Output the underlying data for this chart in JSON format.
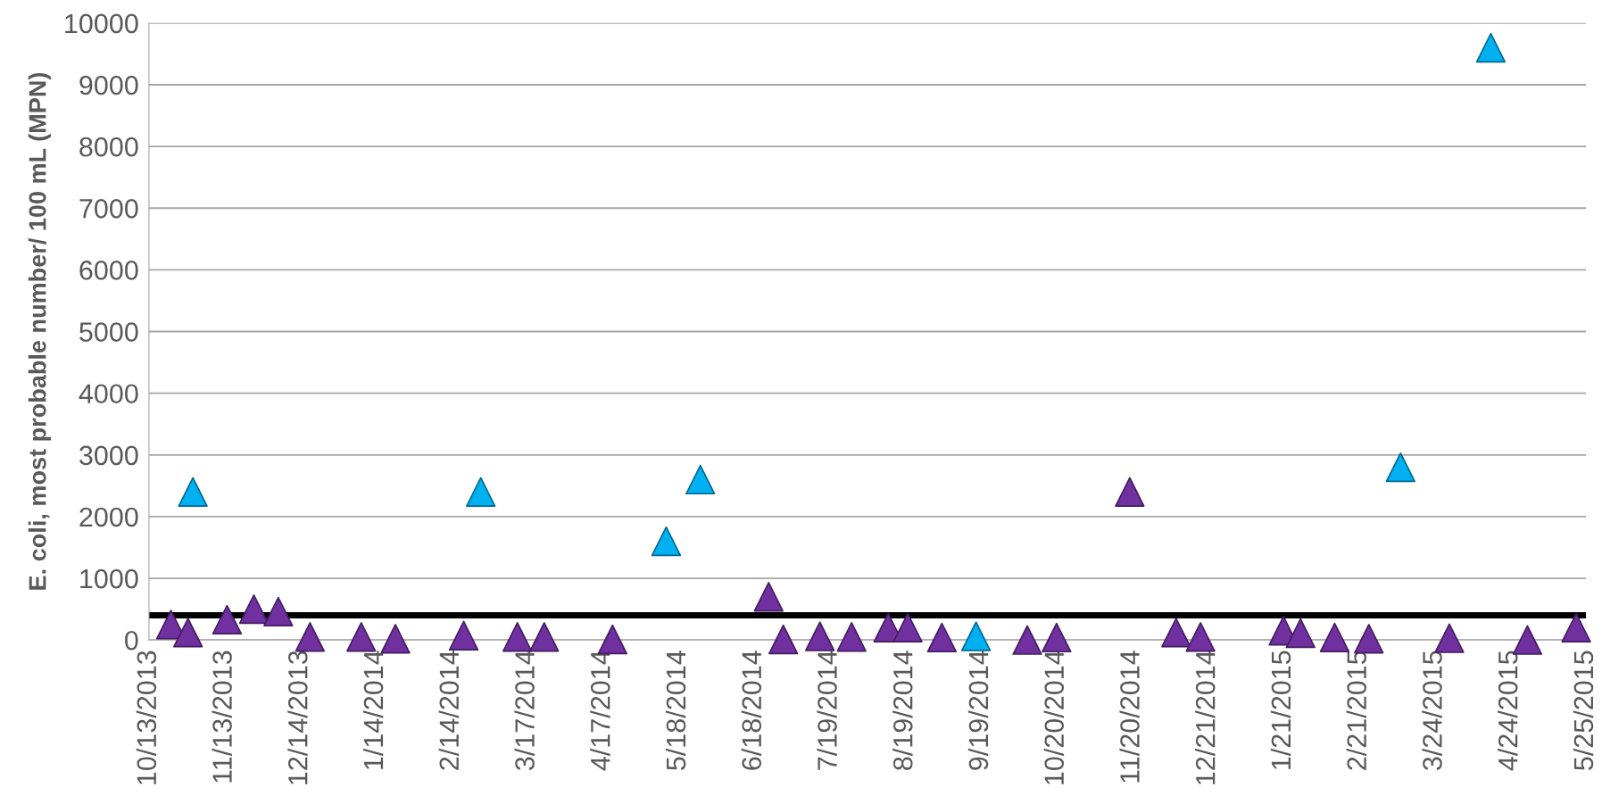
{
  "chart_data": {
    "type": "scatter",
    "ylabel": "E. coli, most probable number/ 100 mL (MPN)",
    "marker": "triangle",
    "grid": "y",
    "legend": false,
    "ylim": [
      0,
      10000
    ],
    "yticks": [
      0,
      1000,
      2000,
      3000,
      4000,
      5000,
      6000,
      7000,
      8000,
      9000,
      10000
    ],
    "xlim": [
      "2013-10-13",
      "2015-05-25"
    ],
    "xticks": [
      {
        "value": "2013-10-13",
        "label": "10/13/2013"
      },
      {
        "value": "2013-11-13",
        "label": "11/13/2013"
      },
      {
        "value": "2013-12-14",
        "label": "12/14/2013"
      },
      {
        "value": "2014-01-14",
        "label": "1/14/2014"
      },
      {
        "value": "2014-02-14",
        "label": "2/14/2014"
      },
      {
        "value": "2014-03-17",
        "label": "3/17/2014"
      },
      {
        "value": "2014-04-17",
        "label": "4/17/2014"
      },
      {
        "value": "2014-05-18",
        "label": "5/18/2014"
      },
      {
        "value": "2014-06-18",
        "label": "6/18/2014"
      },
      {
        "value": "2014-07-19",
        "label": "7/19/2014"
      },
      {
        "value": "2014-08-19",
        "label": "8/19/2014"
      },
      {
        "value": "2014-09-19",
        "label": "9/19/2014"
      },
      {
        "value": "2014-10-20",
        "label": "10/20/2014"
      },
      {
        "value": "2014-11-20",
        "label": "11/20/2014"
      },
      {
        "value": "2014-12-21",
        "label": "12/21/2014"
      },
      {
        "value": "2015-01-21",
        "label": "1/21/2015"
      },
      {
        "value": "2015-02-21",
        "label": "2/21/2015"
      },
      {
        "value": "2015-03-24",
        "label": "3/24/2015"
      },
      {
        "value": "2015-04-24",
        "label": "4/24/2015"
      },
      {
        "value": "2015-05-25",
        "label": "5/25/2015"
      }
    ],
    "ref_lines": [
      {
        "axis": "y",
        "value": 400,
        "label": null,
        "color": "#000000",
        "line_style": "solid"
      }
    ],
    "series": [
      {
        "color": "#00b0f0",
        "x": [
          "2013-10-31",
          "2014-02-26",
          "2014-05-13",
          "2014-05-27",
          "2014-09-17",
          "2015-03-10",
          "2015-04-16"
        ],
        "values": [
          2400,
          2400,
          1600,
          2600,
          60,
          2800,
          9600
        ]
      },
      {
        "color": "#7030a0",
        "x": [
          "2013-10-22",
          "2013-10-29",
          "2013-11-14",
          "2013-11-25",
          "2013-12-05",
          "2013-12-18",
          "2014-01-08",
          "2014-01-22",
          "2014-02-19",
          "2014-03-13",
          "2014-03-24",
          "2014-04-21",
          "2014-06-24",
          "2014-06-30",
          "2014-07-15",
          "2014-07-28",
          "2014-08-12",
          "2014-08-20",
          "2014-09-03",
          "2014-10-08",
          "2014-10-20",
          "2014-11-19",
          "2014-12-08",
          "2014-12-18",
          "2015-01-21",
          "2015-01-28",
          "2015-02-11",
          "2015-02-25",
          "2015-03-30",
          "2015-05-01",
          "2015-05-21"
        ],
        "values": [
          250,
          120,
          330,
          500,
          460,
          50,
          50,
          20,
          70,
          50,
          50,
          10,
          700,
          10,
          60,
          50,
          200,
          200,
          40,
          0,
          40,
          2400,
          120,
          50,
          150,
          110,
          40,
          20,
          30,
          0,
          200
        ]
      }
    ]
  }
}
